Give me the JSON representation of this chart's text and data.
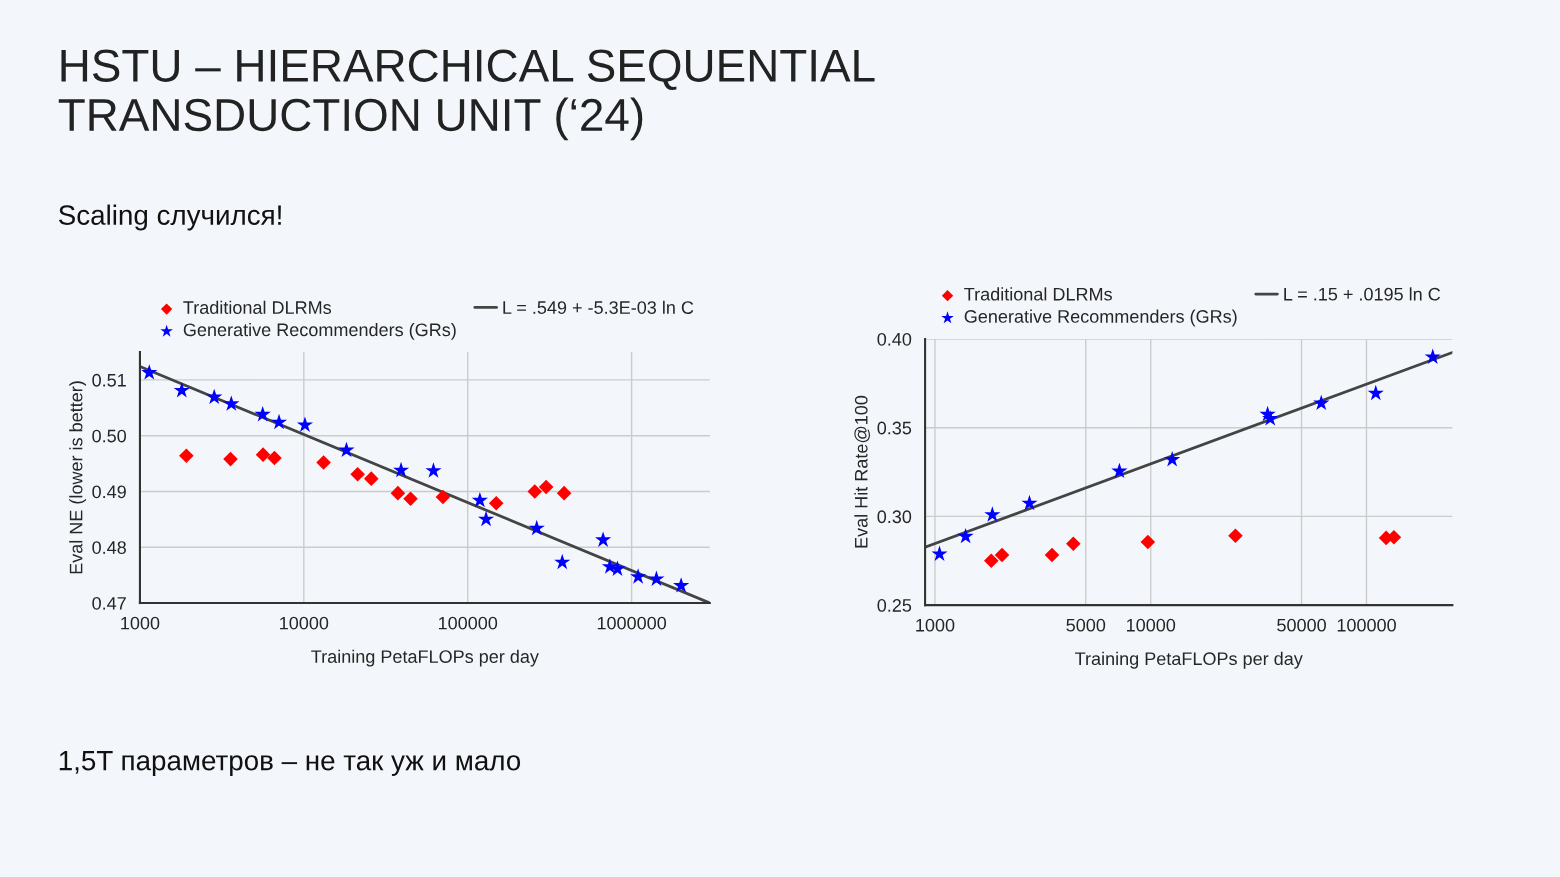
{
  "chart_data": [
    {
      "type": "scatter",
      "title": "HSTU – HIERARCHICAL SEQUENTIAL\nTRANSDUCTION UNIT (‘24)",
      "subtitle": "Scaling случился!",
      "annotations": [
        "1,5T параметров – не так уж и мало"
      ],
      "xlabel": "Training PetaFLOPs per day",
      "ylabel": "Eval NE (lower is better)",
      "log": "x",
      "xlim": [
        1000,
        3000000
      ],
      "xticks": [
        1000,
        10000,
        100000,
        1000000
      ],
      "ylim": [
        0.47,
        0.515
      ],
      "yticks": [
        0.47,
        0.48,
        0.49,
        {
          "value": 0.5,
          "label": "0.50"
        },
        0.51
      ],
      "grid": true,
      "legend": "top",
      "series": [
        {
          "name": "Traditional DLRMs",
          "color": "#ff0000",
          "marker": "diamond",
          "x": [
            1920,
            3570,
            5640,
            6620,
            13200,
            21300,
            25800,
            37500,
            44800,
            70600,
            149300,
            256500,
            301000,
            387500
          ],
          "values": [
            0.4964,
            0.4958,
            0.4966,
            0.496,
            0.4952,
            0.4931,
            0.4923,
            0.4897,
            0.4887,
            0.489,
            0.4879,
            0.49,
            0.4908,
            0.4897
          ]
        },
        {
          "name": "Generative Recommenders (GRs)",
          "color": "#0000ff",
          "marker": "star",
          "x": [
            1140,
            1800,
            2840,
            3610,
            5610,
            7060,
            10160,
            18200,
            39200,
            61800,
            118600,
            129400,
            263700,
            377400,
            670000,
            737000,
            820000,
            1096000,
            1417000,
            2005000
          ],
          "values": [
            0.5113,
            0.5081,
            0.5069,
            0.5057,
            0.5038,
            0.5024,
            0.5019,
            0.4974,
            0.4938,
            0.4937,
            0.4884,
            0.485,
            0.4834,
            0.4773,
            0.4813,
            0.4765,
            0.4761,
            0.4747,
            0.4743,
            0.4731
          ]
        },
        {
          "name": "L = .549 + -5.3E-03 ln C",
          "type": "line",
          "color": "#444444",
          "line_style": "solid",
          "x": [
            1000,
            3000000
          ],
          "values": [
            0.5124,
            0.47
          ]
        }
      ]
    },
    {
      "type": "scatter",
      "xlabel": "Training PetaFLOPs per day",
      "ylabel": "Eval Hit Rate@100",
      "log": "x",
      "xlim": [
        900,
        250000
      ],
      "xticks": [
        1000,
        5000,
        10000,
        50000,
        100000
      ],
      "ylim": [
        0.25,
        0.4
      ],
      "yticks": [
        0.25,
        {
          "value": 0.3,
          "label": "0.30"
        },
        0.35,
        {
          "value": 0.4,
          "label": "0.40"
        }
      ],
      "grid": true,
      "legend": "top",
      "series": [
        {
          "name": "Traditional DLRMs",
          "color": "#ff0000",
          "marker": "diamond",
          "x": [
            1824,
            2046,
            3487,
            4378,
            9700,
            24700,
            123300,
            134000
          ],
          "values": [
            0.275,
            0.2782,
            0.2782,
            0.2846,
            0.2856,
            0.2891,
            0.2879,
            0.2883
          ]
        },
        {
          "name": "Generative Recommenders (GRs)",
          "color": "#0000ff",
          "marker": "star",
          "x": [
            1050,
            1387,
            1845,
            2742,
            7160,
            12570,
            34800,
            35800,
            61700,
            110400,
            202800
          ],
          "values": [
            0.2788,
            0.2887,
            0.3009,
            0.3074,
            0.3255,
            0.332,
            0.3575,
            0.3551,
            0.3638,
            0.3694,
            0.3898
          ]
        },
        {
          "name": "L = .15 + .0195 ln C",
          "type": "line",
          "color": "#444444",
          "line_style": "solid",
          "x": [
            900,
            250000
          ],
          "values": [
            0.2826,
            0.3924
          ]
        }
      ]
    }
  ]
}
